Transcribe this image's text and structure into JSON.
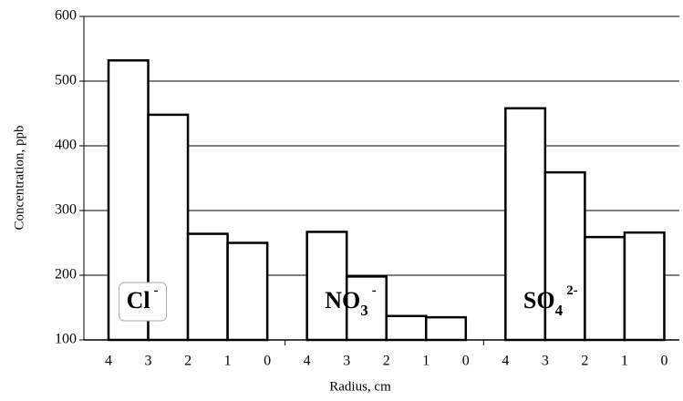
{
  "chart_data": {
    "type": "bar",
    "y_label": "Concentration, ppb",
    "x_label": "Radius, cm",
    "ylim": [
      100,
      600
    ],
    "yticks": [
      100,
      200,
      300,
      400,
      500,
      600
    ],
    "grid": true,
    "groups": [
      {
        "label": {
          "base": "Cl",
          "sub": "",
          "sup": "-"
        },
        "boxed": true,
        "radii": [
          4,
          3,
          2,
          1,
          0
        ],
        "values": [
          532,
          448,
          264,
          250
        ]
      },
      {
        "label": {
          "base": "NO",
          "sub": "3",
          "sup": "-"
        },
        "boxed": false,
        "radii": [
          4,
          3,
          2,
          1,
          0
        ],
        "values": [
          267,
          198,
          137,
          135
        ]
      },
      {
        "label": {
          "base": "SO",
          "sub": "4",
          "sup": "2-"
        },
        "boxed": false,
        "radii": [
          4,
          3,
          2,
          1,
          0
        ],
        "values": [
          458,
          359,
          259,
          266
        ]
      }
    ]
  }
}
